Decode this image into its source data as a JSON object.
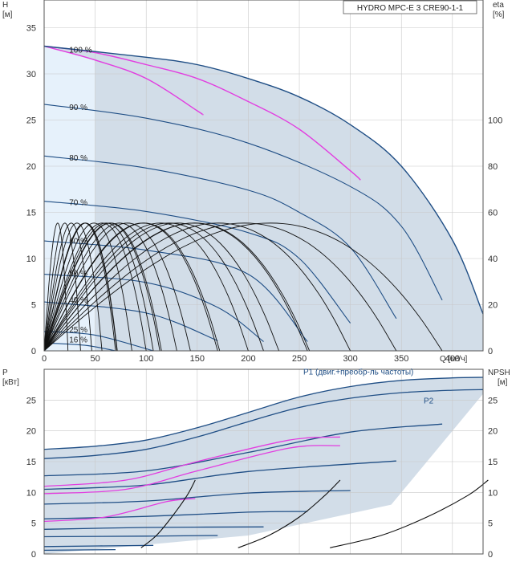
{
  "chart_data": [
    {
      "type": "line",
      "title": "HYDRO MPC-E 3 CRE90-1-1",
      "ylabel": "H",
      "ylabel_unit": "[м]",
      "y2label": "eta",
      "y2label_unit": "[%]",
      "xlabel": "Q [м³/ч]",
      "xlim": [
        0,
        430
      ],
      "ylim": [
        0,
        38
      ],
      "y2lim": [
        0,
        152
      ],
      "grid": true,
      "x_ticks": [
        0,
        50,
        100,
        150,
        200,
        250,
        300,
        350,
        400
      ],
      "y_ticks": [
        0,
        5,
        10,
        15,
        20,
        25,
        30,
        35
      ],
      "y2_ticks": [
        0,
        20,
        40,
        60,
        80,
        100
      ],
      "speed_labels": [
        {
          "text": "100 %",
          "q": 12,
          "h": 32.3
        },
        {
          "text": "90 %",
          "q": 12,
          "h": 26.1
        },
        {
          "text": "80 %",
          "q": 12,
          "h": 20.6
        },
        {
          "text": "70 %",
          "q": 12,
          "h": 15.8
        },
        {
          "text": "60 %",
          "q": 12,
          "h": 11.6
        },
        {
          "text": "50 %",
          "q": 12,
          "h": 8.1
        },
        {
          "text": "40 %",
          "q": 12,
          "h": 5.2
        },
        {
          "text": "25 %",
          "q": 12,
          "h": 2.0
        },
        {
          "text": "16 %",
          "q": 12,
          "h": 0.9
        }
      ],
      "series": [
        {
          "speed_pct": 100,
          "pumps": 1,
          "points": [
            [
              0,
              33
            ],
            [
              50,
              31.5
            ],
            [
              100,
              29.5
            ],
            [
              150,
              26
            ],
            [
              155,
              25.6
            ]
          ]
        },
        {
          "speed_pct": 100,
          "pumps": 2,
          "points": [
            [
              0,
              33
            ],
            [
              50,
              32.3
            ],
            [
              100,
              31
            ],
            [
              150,
              29.5
            ],
            [
              200,
              27
            ],
            [
              250,
              24
            ],
            [
              300,
              19.5
            ],
            [
              310,
              18.5
            ]
          ]
        },
        {
          "speed_pct": 100,
          "pumps": 3,
          "points": [
            [
              0,
              33
            ],
            [
              100,
              31.8
            ],
            [
              150,
              31
            ],
            [
              200,
              29.5
            ],
            [
              250,
              27.5
            ],
            [
              300,
              24.5
            ],
            [
              350,
              20
            ],
            [
              400,
              12
            ],
            [
              430,
              4
            ]
          ]
        },
        {
          "speed_pct": 90,
          "points": [
            [
              0,
              26.7
            ],
            [
              100,
              25.2
            ],
            [
              200,
              22.5
            ],
            [
              300,
              17.8
            ],
            [
              350,
              13.5
            ],
            [
              390,
              5.5
            ]
          ]
        },
        {
          "speed_pct": 80,
          "points": [
            [
              0,
              21.1
            ],
            [
              100,
              19.8
            ],
            [
              200,
              17.4
            ],
            [
              250,
              15
            ],
            [
              300,
              11.2
            ],
            [
              345,
              3.5
            ]
          ]
        },
        {
          "speed_pct": 70,
          "points": [
            [
              0,
              16.2
            ],
            [
              100,
              15.1
            ],
            [
              200,
              12.8
            ],
            [
              250,
              10
            ],
            [
              300,
              3
            ]
          ]
        },
        {
          "speed_pct": 60,
          "points": [
            [
              0,
              11.9
            ],
            [
              100,
              10.9
            ],
            [
              200,
              8.3
            ],
            [
              258,
              1
            ]
          ]
        },
        {
          "speed_pct": 50,
          "points": [
            [
              0,
              8.3
            ],
            [
              100,
              7.4
            ],
            [
              170,
              4.7
            ],
            [
              215,
              1
            ]
          ]
        },
        {
          "speed_pct": 40,
          "points": [
            [
              0,
              5.3
            ],
            [
              100,
              4.1
            ],
            [
              170,
              1.1
            ]
          ]
        },
        {
          "speed_pct": 25,
          "points": [
            [
              0,
              2.1
            ],
            [
              50,
              1.7
            ],
            [
              107,
              0
            ]
          ]
        },
        {
          "speed_pct": 16,
          "points": [
            [
              0,
              0.85
            ],
            [
              40,
              0.6
            ],
            [
              70,
              0
            ]
          ]
        }
      ],
      "max_efficiency_pct": 70
    },
    {
      "type": "line",
      "ylabel": "P",
      "ylabel_unit": "[кВт]",
      "y2label": "NPSH",
      "y2label_unit": "[м]",
      "xlim": [
        0,
        430
      ],
      "ylim": [
        0,
        30
      ],
      "y2lim": [
        0,
        30
      ],
      "grid": true,
      "y_ticks": [
        0,
        5,
        10,
        15,
        20,
        25
      ],
      "y2_ticks": [
        0,
        5,
        10,
        15,
        20,
        25
      ],
      "curve_labels": {
        "p1": "P1 (двиг.+преобр-ль частоты)",
        "p2": "P2"
      },
      "series": [
        {
          "name": "P1 (двиг.+преобр-ль частоты)",
          "speed_pct": 100,
          "points": [
            [
              0,
              17
            ],
            [
              50,
              17.5
            ],
            [
              100,
              18.5
            ],
            [
              150,
              20.5
            ],
            [
              200,
              23
            ],
            [
              250,
              25.5
            ],
            [
              300,
              27.2
            ],
            [
              350,
              28.2
            ],
            [
              400,
              28.6
            ],
            [
              430,
              28.7
            ]
          ]
        },
        {
          "name": "P2",
          "speed_pct": 100,
          "points": [
            [
              0,
              15.5
            ],
            [
              50,
              16
            ],
            [
              100,
              17
            ],
            [
              150,
              19
            ],
            [
              200,
              21.5
            ],
            [
              250,
              23.8
            ],
            [
              300,
              25.3
            ],
            [
              350,
              26.2
            ],
            [
              400,
              26.6
            ],
            [
              430,
              26.7
            ]
          ]
        },
        {
          "speed_pct": 90,
          "points": [
            [
              0,
              12.7
            ],
            [
              100,
              13.5
            ],
            [
              200,
              16.5
            ],
            [
              300,
              19.8
            ],
            [
              390,
              21.1
            ]
          ]
        },
        {
          "speed_pct": 80,
          "points": [
            [
              0,
              10.5
            ],
            [
              100,
              11.2
            ],
            [
              200,
              13.4
            ],
            [
              345,
              15.1
            ]
          ]
        },
        {
          "speed_pct": 70,
          "points": [
            [
              0,
              8.1
            ],
            [
              100,
              8.6
            ],
            [
              200,
              9.9
            ],
            [
              300,
              10.3
            ]
          ]
        },
        {
          "speed_pct": 60,
          "points": [
            [
              0,
              5.7
            ],
            [
              100,
              6.1
            ],
            [
              200,
              6.8
            ],
            [
              258,
              6.9
            ]
          ]
        },
        {
          "speed_pct": 50,
          "points": [
            [
              0,
              4
            ],
            [
              100,
              4.3
            ],
            [
              215,
              4.4
            ]
          ]
        },
        {
          "speed_pct": 40,
          "points": [
            [
              0,
              2.8
            ],
            [
              100,
              2.9
            ],
            [
              170,
              3
            ]
          ]
        },
        {
          "speed_pct": 25,
          "points": [
            [
              0,
              1.2
            ],
            [
              107,
              1.4
            ]
          ]
        },
        {
          "speed_pct": 16,
          "points": [
            [
              0,
              0.6
            ],
            [
              70,
              0.7
            ]
          ]
        }
      ],
      "npsh_series": [
        {
          "points": [
            [
              95,
              1
            ],
            [
              110,
              3
            ],
            [
              125,
              6
            ],
            [
              140,
              9.5
            ],
            [
              148,
              12
            ]
          ]
        },
        {
          "points": [
            [
              190,
              1
            ],
            [
              220,
              3
            ],
            [
              250,
              6
            ],
            [
              275,
              9.5
            ],
            [
              290,
              12
            ]
          ]
        },
        {
          "points": [
            [
              280,
              1
            ],
            [
              330,
              3
            ],
            [
              375,
              6
            ],
            [
              415,
              9.5
            ],
            [
              435,
              12
            ]
          ]
        }
      ]
    }
  ]
}
